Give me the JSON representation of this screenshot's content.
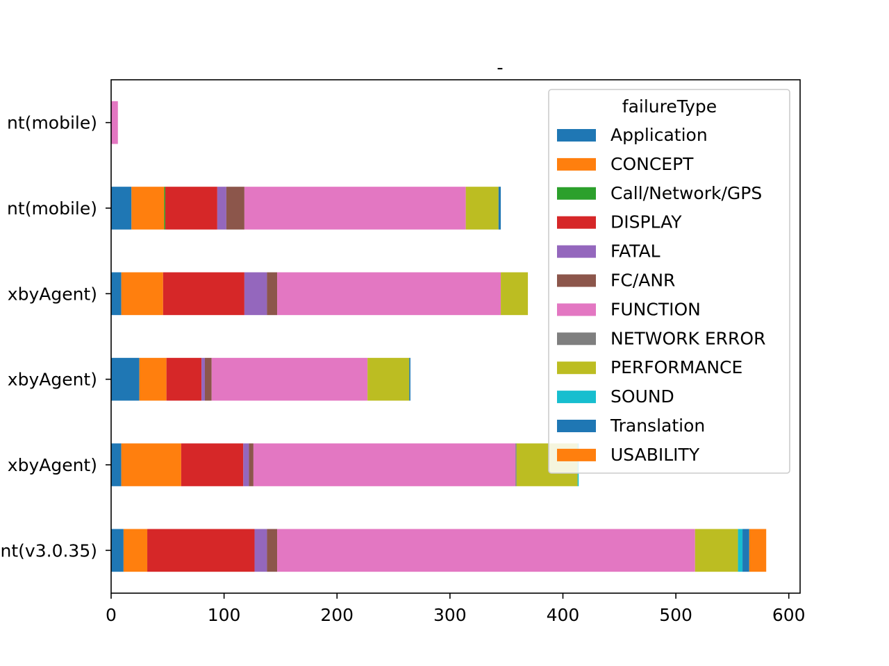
{
  "chart_data": {
    "type": "bar",
    "orientation": "horizontal",
    "stacked": true,
    "title": "-",
    "xlabel": "",
    "ylabel": "",
    "xlim": [
      0,
      610
    ],
    "xticks": [
      0,
      100,
      200,
      300,
      400,
      500,
      600
    ],
    "grid": false,
    "legend_title": "failureType",
    "legend_position": "top-right",
    "categories": [
      "nt(v3.0.35)",
      "xbyAgent)",
      "xbyAgent)",
      "xbyAgent)",
      "nt(mobile)",
      "nt(mobile)"
    ],
    "series": [
      {
        "name": "Application",
        "color": "#1f77b4",
        "values": [
          11,
          9,
          25,
          9,
          18,
          0
        ]
      },
      {
        "name": "CONCEPT",
        "color": "#ff7f0e",
        "values": [
          21,
          53,
          24,
          37,
          29,
          0
        ]
      },
      {
        "name": "Call/Network/GPS",
        "color": "#2ca02c",
        "values": [
          0,
          0,
          0,
          0,
          1,
          0
        ]
      },
      {
        "name": "DISPLAY",
        "color": "#d62728",
        "values": [
          95,
          55,
          31,
          72,
          46,
          0
        ]
      },
      {
        "name": "FATAL",
        "color": "#9467bd",
        "values": [
          11,
          5,
          3,
          20,
          8,
          0
        ]
      },
      {
        "name": "FC/ANR",
        "color": "#8c564b",
        "values": [
          9,
          4,
          6,
          9,
          16,
          0
        ]
      },
      {
        "name": "FUNCTION",
        "color": "#e377c2",
        "values": [
          370,
          232,
          138,
          198,
          196,
          6
        ]
      },
      {
        "name": "NETWORK ERROR",
        "color": "#7f7f7f",
        "values": [
          0,
          1,
          0,
          0,
          0,
          0
        ]
      },
      {
        "name": "PERFORMANCE",
        "color": "#bcbd22",
        "values": [
          38,
          54,
          37,
          24,
          29,
          0
        ]
      },
      {
        "name": "SOUND",
        "color": "#17becf",
        "values": [
          4,
          1,
          0,
          0,
          0,
          0
        ]
      },
      {
        "name": "Translation",
        "color": "#1f77b4",
        "values": [
          6,
          0,
          1,
          0,
          2,
          0
        ]
      },
      {
        "name": "USABILITY",
        "color": "#ff7f0e",
        "values": [
          15,
          0,
          0,
          0,
          0,
          0
        ]
      }
    ]
  }
}
